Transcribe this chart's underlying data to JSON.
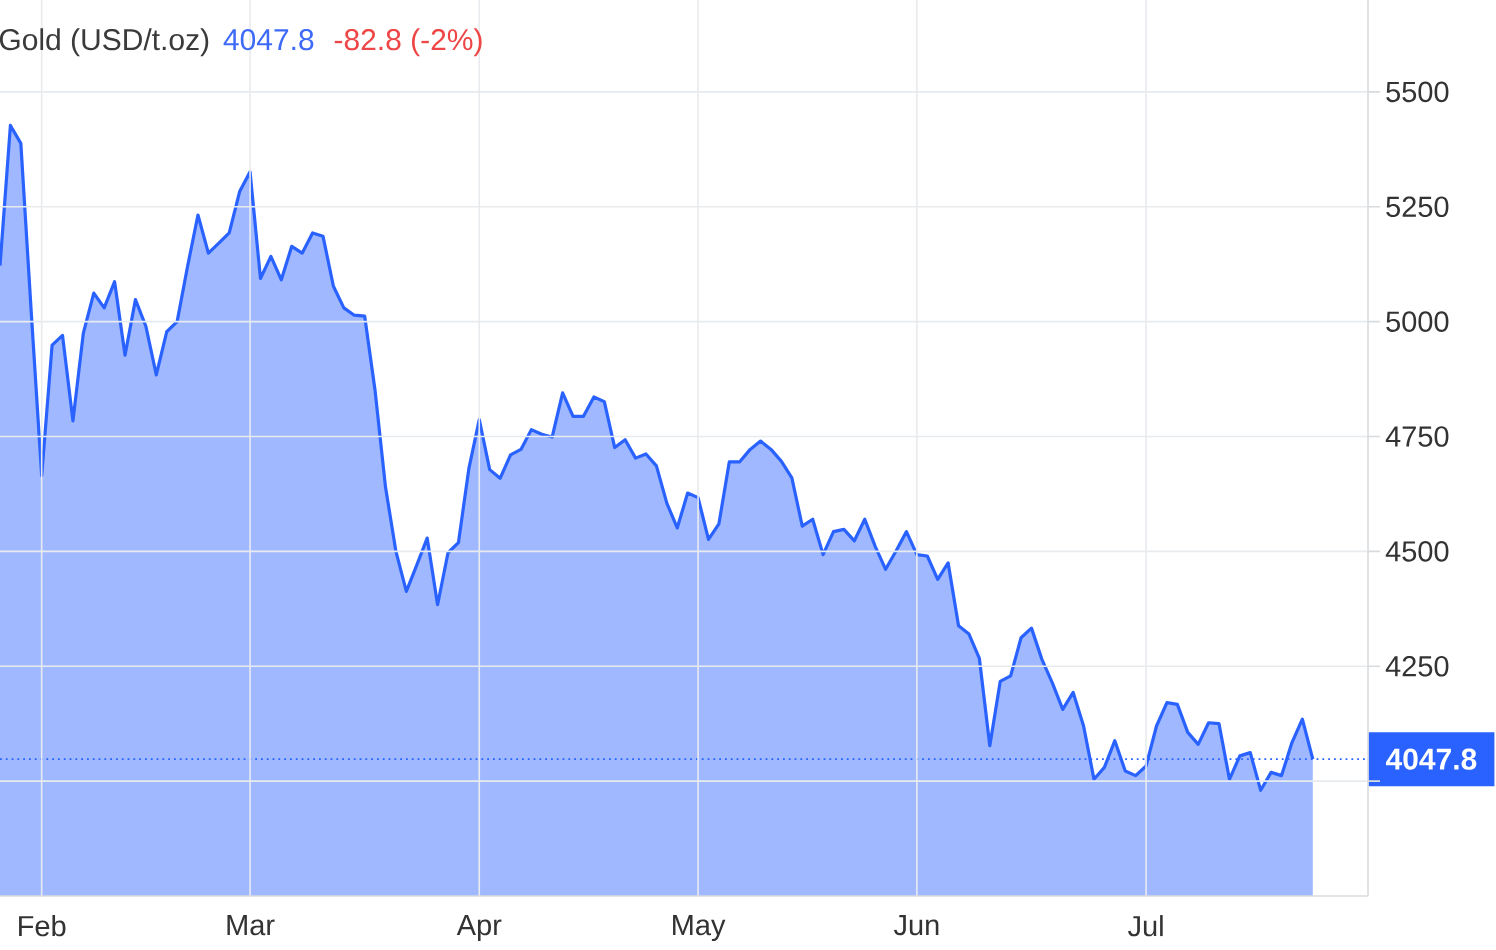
{
  "chart_data": {
    "type": "area",
    "title": "Gold (USD/t.oz)",
    "annotations": [
      "4047.8",
      "-82.8 (-2%)"
    ],
    "categories": [
      null,
      null,
      null,
      null,
      "Feb",
      null,
      null,
      null,
      null,
      null,
      null,
      null,
      null,
      null,
      null,
      null,
      null,
      null,
      null,
      null,
      null,
      null,
      null,
      null,
      "Mar",
      null,
      null,
      null,
      null,
      null,
      null,
      null,
      null,
      null,
      null,
      null,
      null,
      null,
      null,
      null,
      null,
      null,
      null,
      null,
      null,
      null,
      "Apr",
      null,
      null,
      null,
      null,
      null,
      null,
      null,
      null,
      null,
      null,
      null,
      null,
      null,
      null,
      null,
      null,
      null,
      null,
      null,
      null,
      "May",
      null,
      null,
      null,
      null,
      null,
      null,
      null,
      null,
      null,
      null,
      null,
      null,
      null,
      null,
      null,
      null,
      null,
      null,
      null,
      null,
      "Jun",
      null,
      null,
      null,
      null,
      null,
      null,
      null,
      null,
      null,
      null,
      null,
      null,
      null,
      null,
      null,
      null,
      null,
      null,
      null,
      null,
      null,
      "Jul",
      null,
      null,
      null,
      null,
      null,
      null,
      null,
      null,
      null,
      null,
      null,
      null,
      null,
      null,
      null,
      null
    ],
    "values": [
      5122,
      5427,
      5388,
      5020,
      4665,
      4949,
      4970,
      4784,
      4975,
      5062,
      5030,
      5087,
      4927,
      5048,
      4990,
      4884,
      4978,
      5000,
      5120,
      5232,
      5149,
      5171,
      5193,
      5283,
      5326,
      5094,
      5142,
      5091,
      5164,
      5149,
      5193,
      5186,
      5077,
      5030,
      5014,
      5012,
      4850,
      4640,
      4500,
      4413,
      4470,
      4529,
      4384,
      4497,
      4519,
      4680,
      4787,
      4678,
      4659,
      4710,
      4722,
      4765,
      4755,
      4749,
      4845,
      4794,
      4794,
      4836,
      4826,
      4726,
      4743,
      4703,
      4712,
      4686,
      4605,
      4551,
      4627,
      4617,
      4526,
      4560,
      4695,
      4695,
      4722,
      4740,
      4722,
      4696,
      4660,
      4555,
      4570,
      4493,
      4543,
      4548,
      4523,
      4570,
      4511,
      4461,
      4501,
      4543,
      4493,
      4490,
      4439,
      4475,
      4338,
      4320,
      4267,
      4077,
      4217,
      4229,
      4312,
      4333,
      4265,
      4214,
      4156,
      4193,
      4120,
      4004,
      4030,
      4088,
      4022,
      4012,
      4033,
      4120,
      4171,
      4167,
      4106,
      4080,
      4127,
      4125,
      4004,
      4055,
      4062,
      3980,
      4019,
      4012,
      4084,
      4135,
      4047.8
    ],
    "color": "#2962ff",
    "ylim": [
      3750,
      5700
    ],
    "yticks": [
      {
        "value": 4000,
        "label": null
      },
      4250,
      4500,
      4750,
      5000,
      5250,
      5500
    ],
    "grid": true,
    "ref_lines": [
      {
        "axis": "y",
        "value": 4047.8,
        "label": "4047.8",
        "color": "#2962ff",
        "line_style": "dotted"
      }
    ]
  }
}
